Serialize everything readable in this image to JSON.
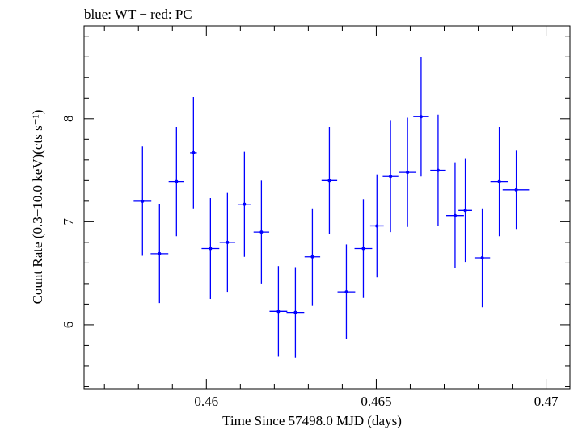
{
  "chart_data": {
    "type": "scatter",
    "title": "blue: WT − red: PC",
    "xlabel": "Time Since 57498.0 MJD (days)",
    "ylabel": "Count Rate (0.3−10.0 keV)(cts s⁻¹)",
    "xlim": [
      0.4564,
      0.4707
    ],
    "ylim": [
      5.38,
      8.9
    ],
    "x_ticks": [
      0.46,
      0.465,
      0.47
    ],
    "x_tick_labels": [
      "0.46",
      "0.465",
      "0.47"
    ],
    "y_ticks": [
      6,
      7,
      8
    ],
    "y_tick_labels": [
      "6",
      "7",
      "8"
    ],
    "grid": false,
    "series": [
      {
        "name": "WT",
        "color": "#0000ff",
        "points": [
          {
            "x": 0.45812,
            "xerr": 0.00026,
            "y": 7.2,
            "yerr": 0.53
          },
          {
            "x": 0.45862,
            "xerr": 0.00026,
            "y": 6.69,
            "yerr": 0.48
          },
          {
            "x": 0.45912,
            "xerr": 0.00023,
            "y": 7.39,
            "yerr": 0.53
          },
          {
            "x": 0.45962,
            "xerr": 0.0001,
            "y": 7.67,
            "yerr": 0.54
          },
          {
            "x": 0.46012,
            "xerr": 0.00026,
            "y": 6.74,
            "yerr": 0.49
          },
          {
            "x": 0.46062,
            "xerr": 0.00023,
            "y": 6.8,
            "yerr": 0.48
          },
          {
            "x": 0.46112,
            "xerr": 0.0002,
            "y": 7.17,
            "yerr": 0.51
          },
          {
            "x": 0.46162,
            "xerr": 0.00023,
            "y": 6.9,
            "yerr": 0.5
          },
          {
            "x": 0.46212,
            "xerr": 0.00026,
            "y": 6.13,
            "yerr": 0.44
          },
          {
            "x": 0.46262,
            "xerr": 0.00026,
            "y": 6.12,
            "yerr": 0.44
          },
          {
            "x": 0.46312,
            "xerr": 0.00023,
            "y": 6.66,
            "yerr": 0.47
          },
          {
            "x": 0.46362,
            "xerr": 0.00023,
            "y": 7.4,
            "yerr": 0.52
          },
          {
            "x": 0.46412,
            "xerr": 0.00026,
            "y": 6.32,
            "yerr": 0.46
          },
          {
            "x": 0.46462,
            "xerr": 0.00026,
            "y": 6.74,
            "yerr": 0.48
          },
          {
            "x": 0.46502,
            "xerr": 0.0002,
            "y": 6.96,
            "yerr": 0.5
          },
          {
            "x": 0.46542,
            "xerr": 0.00023,
            "y": 7.44,
            "yerr": 0.54
          },
          {
            "x": 0.46592,
            "xerr": 0.00026,
            "y": 7.48,
            "yerr": 0.53
          },
          {
            "x": 0.46632,
            "xerr": 0.00023,
            "y": 8.02,
            "yerr": 0.58
          },
          {
            "x": 0.46682,
            "xerr": 0.00023,
            "y": 7.5,
            "yerr": 0.54
          },
          {
            "x": 0.46732,
            "xerr": 0.00026,
            "y": 7.06,
            "yerr": 0.51
          },
          {
            "x": 0.46762,
            "xerr": 0.0002,
            "y": 7.11,
            "yerr": 0.5
          },
          {
            "x": 0.46812,
            "xerr": 0.00023,
            "y": 6.65,
            "yerr": 0.48
          },
          {
            "x": 0.46862,
            "xerr": 0.00026,
            "y": 7.39,
            "yerr": 0.53
          },
          {
            "x": 0.46912,
            "xerr": 0.0004,
            "y": 7.31,
            "yerr": 0.38
          }
        ]
      }
    ]
  }
}
